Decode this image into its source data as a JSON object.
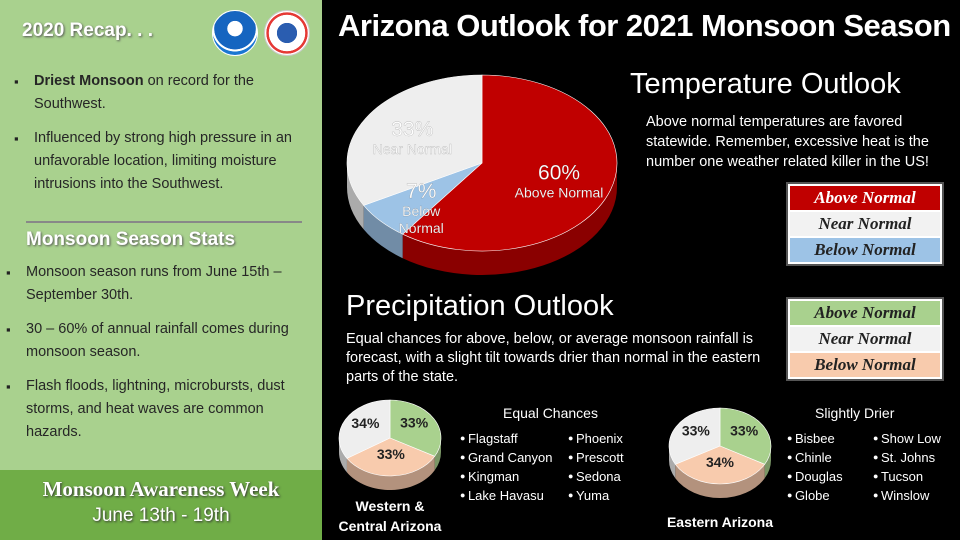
{
  "recap": {
    "title": "2020 Recap. . .",
    "bullets": [
      {
        "bold": "Driest Monsoon",
        "text": " on record for the Southwest."
      },
      {
        "bold": "",
        "text": "Influenced by strong high pressure in an unfavorable location, limiting moisture intrusions into the Southwest."
      }
    ]
  },
  "logos": {
    "noaa": "NOAA",
    "nws": "NATIONAL WEATHER SERVICE"
  },
  "stats": {
    "title": "Monsoon Season Stats",
    "bullets": [
      "Monsoon season runs from June 15th – September 30th.",
      "30 – 60% of annual rainfall comes during monsoon season.",
      "Flash floods, lightning, microbursts, dust storms, and heat waves are common hazards."
    ]
  },
  "awareness": {
    "title": "Monsoon Awareness Week",
    "dates": "June 13th - 19th"
  },
  "main_title": "Arizona Outlook for 2021 Monsoon Season",
  "temperature": {
    "title": "Temperature Outlook",
    "description": "Above normal temperatures are favored statewide. Remember, excessive heat is the number one weather related killer in the US!",
    "legend": [
      {
        "label": "Above Normal",
        "color": "#c00000",
        "text_color": "#ffffff"
      },
      {
        "label": "Near Normal",
        "color": "#f2f2f2",
        "text_color": "#222222"
      },
      {
        "label": "Below Normal",
        "color": "#9dc3e6",
        "text_color": "#222222"
      }
    ],
    "pie": [
      {
        "label": "Above Normal",
        "pct": "60%",
        "value": 60,
        "color": "#c00000"
      },
      {
        "label": "Below Normal",
        "pct": "7%",
        "value": 7,
        "color": "#9dc3e6"
      },
      {
        "label": "Near Normal",
        "pct": "33%",
        "value": 33,
        "color": "#eeeeee"
      }
    ]
  },
  "precipitation": {
    "title": "Precipitation Outlook",
    "description": "Equal chances for above, below, or average monsoon rainfall is forecast, with a slight tilt towards drier than normal in the eastern parts of the state.",
    "legend": [
      {
        "label": "Above Normal",
        "color": "#a9d18e"
      },
      {
        "label": "Near Normal",
        "color": "#f2f2f2"
      },
      {
        "label": "Below Normal",
        "color": "#f8cbad"
      }
    ],
    "regions": [
      {
        "name_line1": "Western &",
        "name_line2": "Central Arizona",
        "subhead": "Equal Chances",
        "pie": [
          {
            "label": "Above Normal",
            "pct": "33%",
            "value": 33,
            "color": "#a9d18e"
          },
          {
            "label": "Below Normal",
            "pct": "33%",
            "value": 33,
            "color": "#f8cbad"
          },
          {
            "label": "Near Normal",
            "pct": "34%",
            "value": 34,
            "color": "#eeeeee"
          }
        ],
        "cities_col1": [
          "Flagstaff",
          "Grand Canyon",
          "Kingman",
          "Lake Havasu"
        ],
        "cities_col2": [
          "Phoenix",
          "Prescott",
          "Sedona",
          "Yuma"
        ]
      },
      {
        "name_line1": "Eastern Arizona",
        "name_line2": "",
        "subhead": "Slightly Drier",
        "pie": [
          {
            "label": "Above Normal",
            "pct": "33%",
            "value": 33,
            "color": "#a9d18e"
          },
          {
            "label": "Below Normal",
            "pct": "34%",
            "value": 34,
            "color": "#f8cbad"
          },
          {
            "label": "Near Normal",
            "pct": "33%",
            "value": 33,
            "color": "#eeeeee"
          }
        ],
        "cities_col1": [
          "Bisbee",
          "Chinle",
          "Douglas",
          "Globe"
        ],
        "cities_col2": [
          "Show Low",
          "St. Johns",
          "Tucson",
          "Winslow"
        ]
      }
    ]
  }
}
